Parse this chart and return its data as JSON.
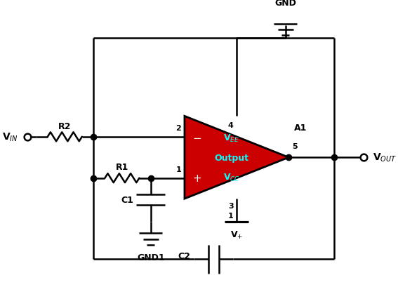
{
  "background_color": "#ffffff",
  "line_color": "#000000",
  "line_width": 1.8,
  "op_amp_color": "#cc0000",
  "op_amp_text_color": "#00ffff",
  "labels": {
    "VIN": "V$_{IN}$",
    "VOUT": "V$_{OUT}$",
    "R2": "R2",
    "R1": "R1",
    "C1": "C1",
    "C2": "C2",
    "GND1": "GND1",
    "GND": "GND",
    "A1": "A1",
    "VEE": "V$_{EE}$",
    "Output": "Output",
    "VCC": "V$_{CC}$",
    "Vplus": "V$_{+}$",
    "pin1": "1",
    "pin2": "2",
    "pin3": "3",
    "pin4": "4",
    "pin5": "5"
  },
  "figsize": [
    5.67,
    4.1
  ],
  "dpi": 100
}
